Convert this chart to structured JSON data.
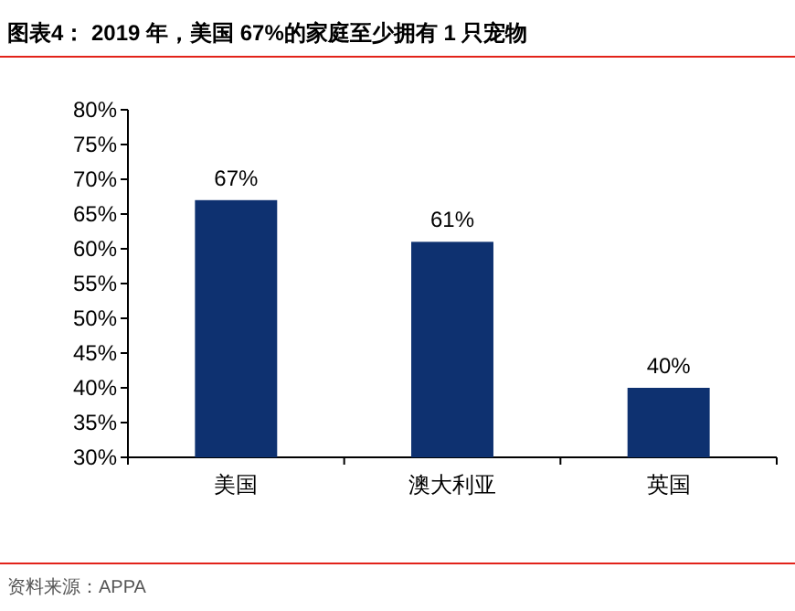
{
  "chart_data": {
    "type": "bar",
    "title": "图表4：  2019 年，美国 67%的家庭至少拥有 1 只宠物",
    "categories": [
      "美国",
      "澳大利亚",
      "英国"
    ],
    "values": [
      67,
      61,
      40
    ],
    "value_labels": [
      "67%",
      "61%",
      "40%"
    ],
    "color": "#0e3170",
    "ylim": [
      30,
      80
    ],
    "yticks": [
      {
        "value": 30,
        "label": "30%"
      },
      {
        "value": 35,
        "label": "35%"
      },
      {
        "value": 40,
        "label": "40%"
      },
      {
        "value": 45,
        "label": "45%"
      },
      {
        "value": 50,
        "label": "50%"
      },
      {
        "value": 55,
        "label": "55%"
      },
      {
        "value": 60,
        "label": "60%"
      },
      {
        "value": 65,
        "label": "65%"
      },
      {
        "value": 70,
        "label": "70%"
      },
      {
        "value": 75,
        "label": "75%"
      },
      {
        "value": 80,
        "label": "80%"
      }
    ],
    "annotations": [
      "资料来源：APPA"
    ]
  }
}
